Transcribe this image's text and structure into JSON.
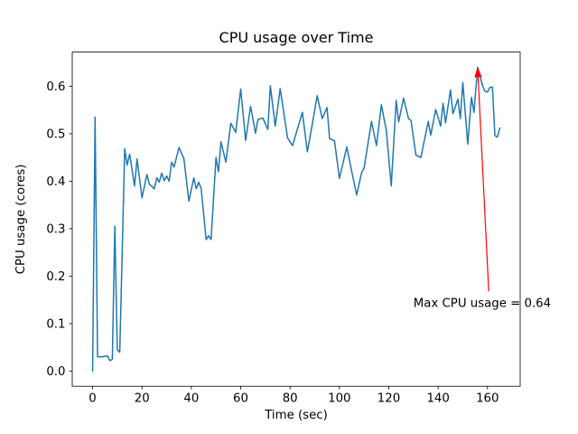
{
  "figure": {
    "background": "#ffffff"
  },
  "chart_data": {
    "type": "line",
    "title": "CPU usage over Time",
    "xlabel": "Time (sec)",
    "ylabel": "CPU usage (cores)",
    "line_color": "#1f77b4",
    "line_width": 1.5,
    "grid": false,
    "legend_position": "none",
    "xlim": [
      -8.25,
      173.25
    ],
    "ylim": [
      -0.032,
      0.672
    ],
    "x_ticks": [
      0,
      20,
      40,
      60,
      80,
      100,
      120,
      140,
      160
    ],
    "x_tick_labels": [
      "0",
      "20",
      "40",
      "60",
      "80",
      "100",
      "120",
      "140",
      "160"
    ],
    "y_ticks": [
      0.0,
      0.1,
      0.2,
      0.3,
      0.4,
      0.5,
      0.6
    ],
    "y_tick_labels": [
      "0.0",
      "0.1",
      "0.2",
      "0.3",
      "0.4",
      "0.5",
      "0.6"
    ],
    "series": [
      {
        "name": "cpu_usage_cores",
        "x": [
          0,
          1,
          2,
          4,
          6,
          7,
          8,
          9,
          10,
          11,
          13,
          14,
          15,
          17,
          18,
          20,
          22,
          23,
          25,
          26,
          27,
          28,
          29,
          30,
          31,
          32,
          33,
          35,
          37,
          39,
          41,
          42,
          43,
          44,
          46,
          47,
          48,
          50,
          51,
          52,
          54,
          56,
          58,
          60,
          62,
          64,
          66,
          67,
          69,
          71,
          72,
          74,
          76,
          79,
          81,
          83,
          85,
          87,
          89,
          91,
          93,
          95,
          96,
          98,
          100,
          103,
          105,
          107,
          109,
          110,
          113,
          115,
          117,
          119,
          121,
          123,
          124,
          126,
          128,
          129,
          131,
          133,
          136,
          137,
          139,
          141,
          142,
          143,
          145,
          146,
          148,
          149,
          150,
          152,
          153.5,
          154.5,
          156,
          158,
          159,
          160,
          161,
          162,
          163,
          164,
          165
        ],
        "y": [
          0.0,
          0.535,
          0.03,
          0.03,
          0.032,
          0.022,
          0.025,
          0.305,
          0.045,
          0.04,
          0.468,
          0.434,
          0.457,
          0.39,
          0.447,
          0.365,
          0.414,
          0.394,
          0.384,
          0.407,
          0.398,
          0.417,
          0.401,
          0.411,
          0.4,
          0.44,
          0.43,
          0.471,
          0.447,
          0.358,
          0.407,
          0.384,
          0.398,
          0.384,
          0.277,
          0.285,
          0.277,
          0.45,
          0.42,
          0.483,
          0.44,
          0.522,
          0.503,
          0.594,
          0.486,
          0.558,
          0.501,
          0.53,
          0.533,
          0.509,
          0.601,
          0.516,
          0.595,
          0.491,
          0.475,
          0.51,
          0.545,
          0.462,
          0.52,
          0.58,
          0.532,
          0.555,
          0.49,
          0.485,
          0.406,
          0.472,
          0.42,
          0.371,
          0.418,
          0.428,
          0.526,
          0.475,
          0.561,
          0.507,
          0.39,
          0.57,
          0.525,
          0.575,
          0.532,
          0.528,
          0.455,
          0.45,
          0.526,
          0.497,
          0.551,
          0.516,
          0.564,
          0.523,
          0.592,
          0.542,
          0.573,
          0.532,
          0.608,
          0.478,
          0.577,
          0.545,
          0.64,
          0.601,
          0.589,
          0.588,
          0.598,
          0.598,
          0.496,
          0.493,
          0.512
        ]
      }
    ],
    "max_point": {
      "x": 156,
      "y": 0.64
    },
    "annotation": {
      "label": "Max CPU usage = 0.64",
      "color": "#ff0000",
      "points_to": {
        "x": 156,
        "y": 0.64
      },
      "arrow_base": {
        "x": 160.5,
        "y": 0.168
      },
      "text_at": {
        "x": 130,
        "y": 0.135
      }
    }
  }
}
